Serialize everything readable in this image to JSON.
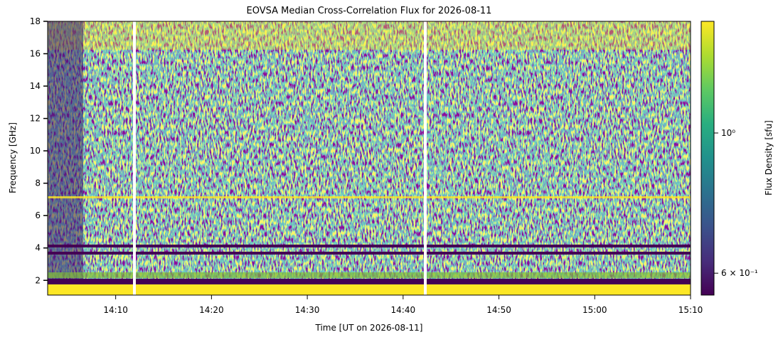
{
  "chart_data": {
    "type": "heatmap",
    "title": "EOVSA Median Cross-Correlation Flux for 2026-08-11",
    "x_label": "Time [UT on 2026-08-11]",
    "y_label": "Frequency [GHz]",
    "colorbar_label": "Flux Density [sfu]",
    "xlim": [
      842.9,
      910
    ],
    "xticks": [
      {
        "value": 850,
        "label": "14:10"
      },
      {
        "value": 860,
        "label": "14:20"
      },
      {
        "value": 870,
        "label": "14:30"
      },
      {
        "value": 880,
        "label": "14:40"
      },
      {
        "value": 890,
        "label": "14:50"
      },
      {
        "value": 900,
        "label": "15:00"
      },
      {
        "value": 910,
        "label": "15:10"
      }
    ],
    "ylim": [
      1.09,
      18
    ],
    "yticks": [
      2,
      4,
      6,
      8,
      10,
      12,
      14,
      16,
      18
    ],
    "colorbar_scale": "log",
    "clim": [
      0.554,
      1.502
    ],
    "colorbar_ticks": [
      {
        "value": 0.6,
        "label": "6 × 10⁻¹"
      },
      {
        "value": 1,
        "label": "10⁰"
      }
    ],
    "colormap": [
      "#440154",
      "#472d7b",
      "#3b528b",
      "#2c728e",
      "#21918c",
      "#28ae80",
      "#5ec962",
      "#addc30",
      "#fde725"
    ]
  }
}
